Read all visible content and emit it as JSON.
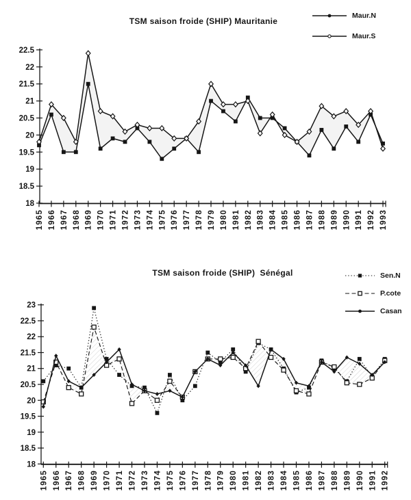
{
  "page": {
    "background": "#ffffff",
    "ink_color": "#161616",
    "shade_color": "#e8e8e8",
    "hatch_color": "#9a9a9a"
  },
  "chart_data": [
    {
      "type": "line",
      "title": "TSM saison froide (SHIP) Mauritanie",
      "xlabel": "",
      "ylabel": "",
      "ylim": [
        18,
        22.5
      ],
      "yticks": [
        "18",
        "18.5",
        "19",
        "19.5",
        "20",
        "20.5",
        "21",
        "21.5",
        "22",
        "22.5"
      ],
      "grid": false,
      "legend_position": "top-right",
      "categories": [
        "1965",
        "1966",
        "1967",
        "1968",
        "1969",
        "1970",
        "1971",
        "1972",
        "1973",
        "1974",
        "1975",
        "1976",
        "1977",
        "1978",
        "1979",
        "1980",
        "1981",
        "1982",
        "1983",
        "1984",
        "1985",
        "1986",
        "1987",
        "1988",
        "1989",
        "1990",
        "1991",
        "1992",
        "1993"
      ],
      "fill_between": {
        "upper": "Maur.S",
        "lower": "Maur.N",
        "style": "solid-light-gray"
      },
      "series": [
        {
          "name": "Maur.N",
          "line_style": "solid",
          "marker": "filled-square",
          "legend_marker": "filled-circle",
          "values": [
            19.7,
            20.6,
            19.5,
            19.5,
            21.5,
            19.6,
            19.9,
            19.8,
            20.2,
            19.8,
            19.3,
            19.6,
            19.9,
            19.5,
            21.0,
            20.7,
            20.4,
            21.1,
            20.5,
            20.5,
            20.2,
            19.8,
            19.4,
            20.15,
            19.6,
            20.25,
            19.8,
            20.6,
            19.75
          ]
        },
        {
          "name": "Maur.S",
          "line_style": "solid",
          "marker": "open-diamond",
          "legend_marker": "open-circle",
          "values": [
            19.8,
            20.9,
            20.5,
            19.8,
            22.4,
            20.7,
            20.55,
            20.1,
            20.3,
            20.2,
            20.2,
            19.9,
            19.9,
            20.4,
            21.5,
            20.9,
            20.9,
            21.0,
            20.05,
            20.6,
            20.0,
            19.8,
            20.1,
            20.85,
            20.55,
            20.7,
            20.3,
            20.7,
            19.6
          ]
        }
      ]
    },
    {
      "type": "line",
      "title": "TSM saison froide (SHIP)  Sénégal",
      "xlabel": "",
      "ylabel": "",
      "ylim": [
        18,
        23
      ],
      "yticks": [
        "18",
        "18.5",
        "19",
        "19.5",
        "20",
        "20.5",
        "21",
        "21.5",
        "22",
        "22.5",
        "23"
      ],
      "grid": false,
      "legend_position": "right",
      "categories": [
        "1965",
        "1966",
        "1967",
        "1968",
        "1969",
        "1970",
        "1971",
        "1972",
        "1973",
        "1974",
        "1975",
        "1976",
        "1977",
        "1978",
        "1979",
        "1980",
        "1981",
        "1982",
        "1983",
        "1984",
        "1985",
        "1986",
        "1987",
        "1988",
        "1989",
        "1990",
        "1991",
        "1992"
      ],
      "fill_between": {
        "upper": "P.cote",
        "lower": "Casan",
        "style": "diagonal-hatch"
      },
      "series": [
        {
          "name": "Sen.N",
          "line_style": "dotted",
          "marker": "filled-square",
          "legend_marker": "filled-square",
          "values": [
            20.6,
            21.1,
            21.0,
            20.4,
            22.9,
            21.3,
            20.8,
            20.45,
            20.4,
            19.6,
            20.8,
            20.0,
            20.45,
            21.5,
            21.2,
            21.6,
            20.9,
            21.8,
            21.6,
            21.0,
            20.25,
            20.4,
            21.25,
            21.0,
            20.6,
            21.3,
            20.75,
            21.3
          ]
        },
        {
          "name": "P.cote",
          "line_style": "dashed",
          "marker": "open-square",
          "legend_marker": "open-square",
          "values": [
            19.95,
            21.2,
            20.4,
            20.2,
            22.3,
            21.1,
            21.3,
            19.9,
            20.3,
            20.0,
            20.6,
            20.1,
            20.9,
            21.3,
            21.3,
            21.35,
            21.0,
            21.85,
            21.35,
            20.95,
            20.3,
            20.2,
            21.2,
            21.05,
            20.55,
            20.5,
            20.7,
            21.25
          ]
        },
        {
          "name": "Casan",
          "line_style": "solid",
          "marker": "filled-diamond",
          "legend_marker": "filled-circle",
          "values": [
            19.8,
            21.4,
            20.6,
            20.4,
            20.8,
            21.2,
            21.6,
            20.5,
            20.3,
            20.2,
            20.3,
            20.1,
            20.9,
            21.3,
            21.1,
            21.5,
            21.1,
            20.45,
            21.6,
            21.3,
            20.55,
            20.45,
            21.2,
            20.9,
            21.35,
            21.15,
            20.8,
            21.2
          ]
        }
      ]
    }
  ]
}
